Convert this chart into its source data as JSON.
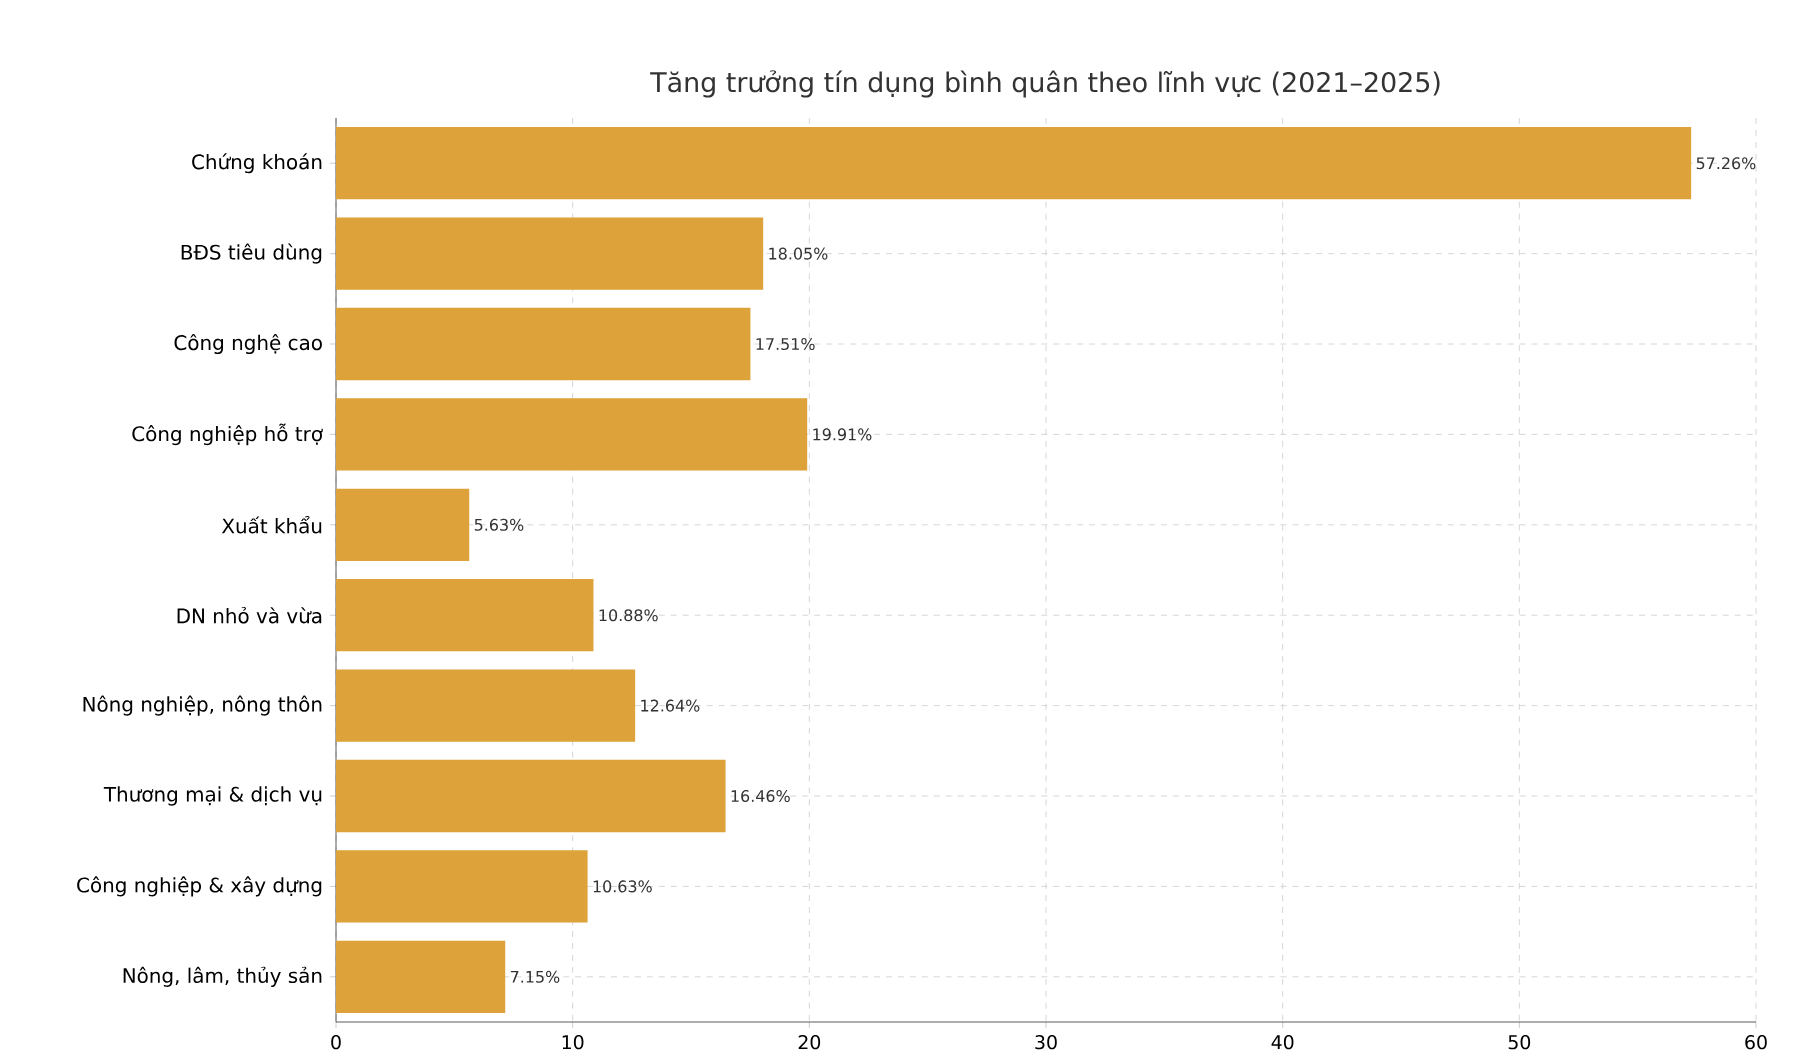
{
  "chart_data": {
    "type": "bar",
    "orientation": "horizontal",
    "title": "Tăng trưởng tín dụng bình quân theo lĩnh vực (2021–2025)",
    "categories": [
      "Chứng khoán",
      "BĐS tiêu dùng",
      "Công nghệ cao",
      "Công nghiệp hỗ trợ",
      "Xuất khẩu",
      "DN nhỏ và vừa",
      "Nông nghiệp, nông thôn",
      "Thương mại & dịch vụ",
      "Công nghiệp & xây dựng",
      "Nông, lâm, thủy sản"
    ],
    "values": [
      57.26,
      18.05,
      17.51,
      19.91,
      5.63,
      10.88,
      12.64,
      16.46,
      10.63,
      7.15
    ],
    "value_labels": [
      "57.26%",
      "18.05%",
      "17.51%",
      "19.91%",
      "5.63%",
      "10.88%",
      "12.64%",
      "16.46%",
      "10.63%",
      "7.15%"
    ],
    "color": "#dda23a",
    "xlim": [
      0,
      60
    ],
    "xticks": [
      0,
      10,
      20,
      30,
      40,
      50,
      60
    ],
    "grid": true
  }
}
